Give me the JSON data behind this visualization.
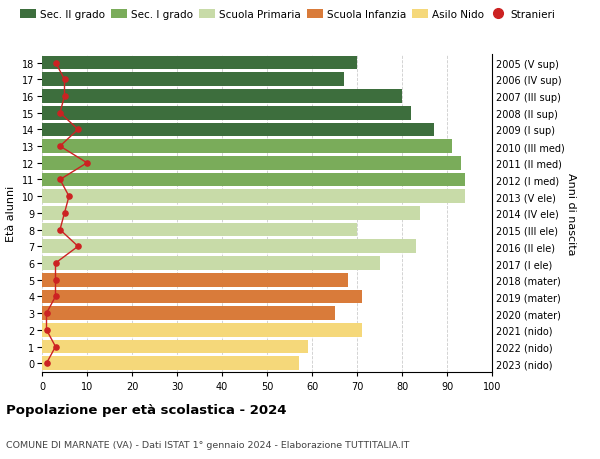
{
  "ages": [
    0,
    1,
    2,
    3,
    4,
    5,
    6,
    7,
    8,
    9,
    10,
    11,
    12,
    13,
    14,
    15,
    16,
    17,
    18
  ],
  "right_labels": [
    "2023 (nido)",
    "2022 (nido)",
    "2021 (nido)",
    "2020 (mater)",
    "2019 (mater)",
    "2018 (mater)",
    "2017 (I ele)",
    "2016 (II ele)",
    "2015 (III ele)",
    "2014 (IV ele)",
    "2013 (V ele)",
    "2012 (I med)",
    "2011 (II med)",
    "2010 (III med)",
    "2009 (I sup)",
    "2008 (II sup)",
    "2007 (III sup)",
    "2006 (IV sup)",
    "2005 (V sup)"
  ],
  "bar_values": [
    57,
    59,
    71,
    65,
    71,
    68,
    75,
    83,
    70,
    84,
    94,
    94,
    93,
    91,
    87,
    82,
    80,
    67,
    70
  ],
  "bar_colors": [
    "#f5d87a",
    "#f5d87a",
    "#f5d87a",
    "#d97b3a",
    "#d97b3a",
    "#d97b3a",
    "#c8dba8",
    "#c8dba8",
    "#c8dba8",
    "#c8dba8",
    "#c8dba8",
    "#7aac5a",
    "#7aac5a",
    "#7aac5a",
    "#3d6e3d",
    "#3d6e3d",
    "#3d6e3d",
    "#3d6e3d",
    "#3d6e3d"
  ],
  "stranieri_values": [
    1,
    3,
    1,
    1,
    3,
    3,
    3,
    8,
    4,
    5,
    6,
    4,
    10,
    4,
    8,
    4,
    5,
    5,
    3
  ],
  "legend_labels": [
    "Sec. II grado",
    "Sec. I grado",
    "Scuola Primaria",
    "Scuola Infanzia",
    "Asilo Nido",
    "Stranieri"
  ],
  "legend_colors": [
    "#3d6e3d",
    "#7aac5a",
    "#c8dba8",
    "#d97b3a",
    "#f5d87a",
    "#cc2222"
  ],
  "ylabel_left": "Età alunni",
  "ylabel_right": "Anni di nascita",
  "title_bold": "Popolazione per età scolastica - 2024",
  "subtitle": "COMUNE DI MARNATE (VA) - Dati ISTAT 1° gennaio 2024 - Elaborazione TUTTITALIA.IT",
  "xlim": [
    0,
    100
  ],
  "bg_color": "#ffffff",
  "grid_color": "#cccccc"
}
